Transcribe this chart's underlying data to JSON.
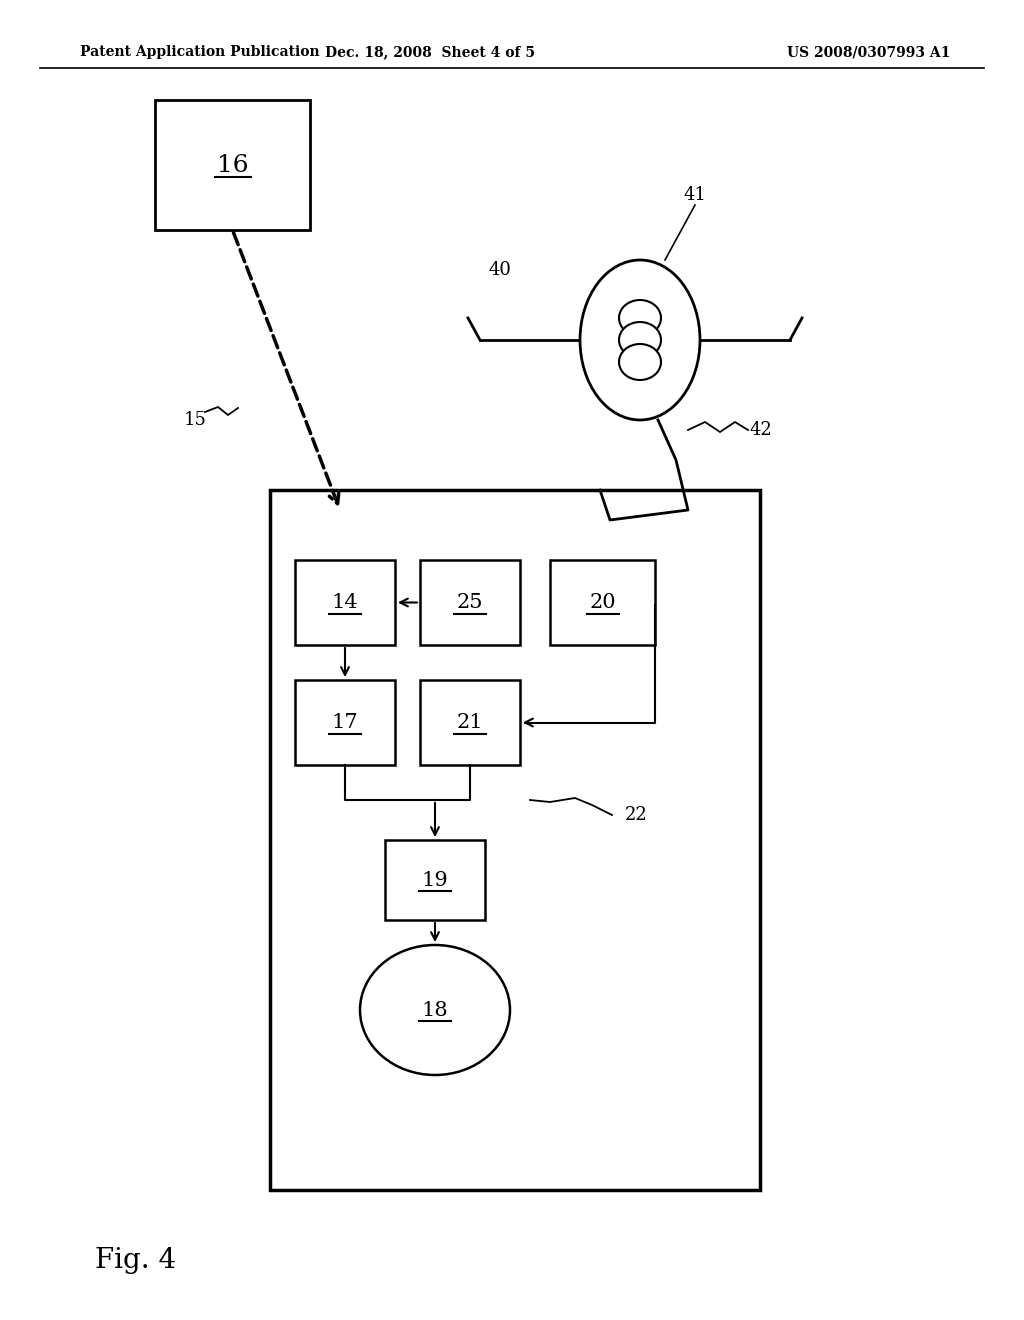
{
  "bg_color": "#ffffff",
  "header_left": "Patent Application Publication",
  "header_center": "Dec. 18, 2008  Sheet 4 of 5",
  "header_right": "US 2008/0307993 A1",
  "footer_label": "Fig. 4"
}
